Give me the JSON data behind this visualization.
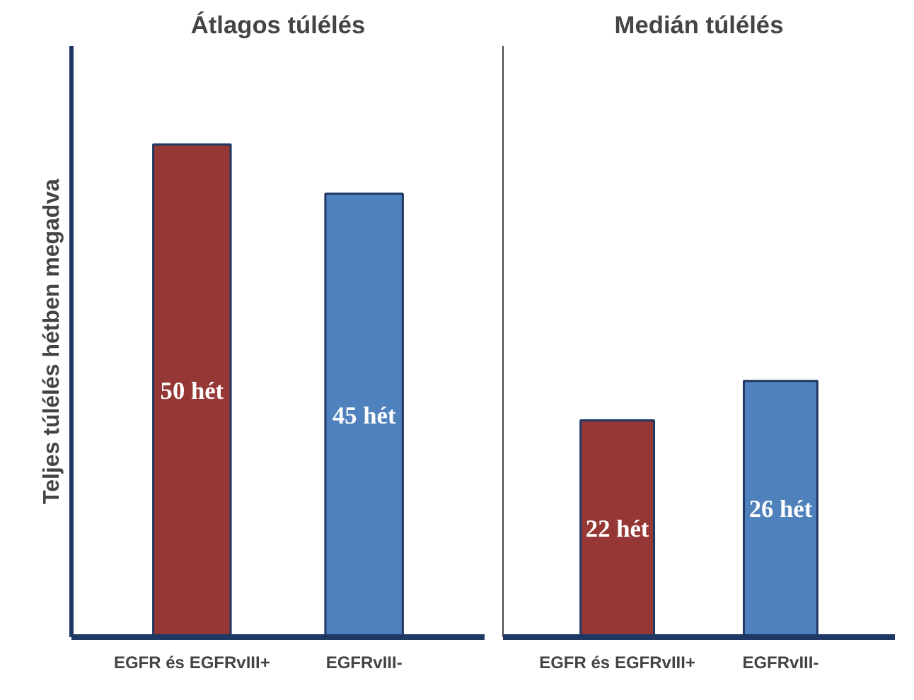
{
  "chart_data": [
    {
      "type": "bar",
      "title": "Átlagos túlélés",
      "ylabel": "Teljes túlélés hétben megadva",
      "categories": [
        "EGFR és EGFRvIII+",
        "EGFRvIII-"
      ],
      "values": [
        50,
        45
      ],
      "colors": [
        "#953735",
        "#4f81bd"
      ],
      "value_labels": [
        "50 hét",
        "45 hét"
      ],
      "ylim": [
        0,
        60
      ],
      "tick_labels": "x",
      "grid": false
    },
    {
      "type": "bar",
      "title": "Medián túlélés",
      "categories": [
        "EGFR és EGFRvIII+",
        "EGFRvIII-"
      ],
      "values": [
        22,
        26
      ],
      "colors": [
        "#953735",
        "#4f81bd"
      ],
      "value_labels": [
        "22 hét",
        "26 hét"
      ],
      "ylim": [
        0,
        60
      ],
      "tick_labels": "x",
      "grid": false
    }
  ]
}
